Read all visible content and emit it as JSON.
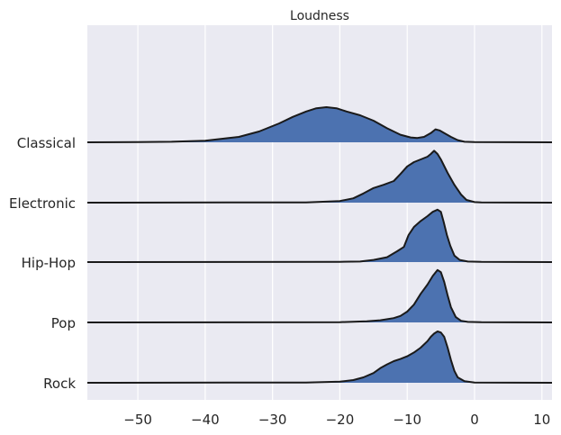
{
  "chart_data": {
    "type": "ridgeline",
    "title": "Loudness",
    "xlabel": "",
    "ylabel": "",
    "xlim": [
      -57.5,
      11.5
    ],
    "x_ticks": [
      -50,
      -40,
      -30,
      -20,
      -10,
      0,
      10
    ],
    "x_tick_labels": [
      "−50",
      "−40",
      "−30",
      "−20",
      "−10",
      "0",
      "10"
    ],
    "grid": true,
    "legend": "none",
    "colors": {
      "fill": "#4c72b0",
      "line": "#1a1a1a",
      "background": "#eaeaf2",
      "grid": "#ffffff"
    },
    "categories": [
      "Classical",
      "Electronic",
      "Hip-Hop",
      "Pop",
      "Rock"
    ],
    "series": [
      {
        "name": "Classical",
        "points": [
          [
            -57.5,
            0
          ],
          [
            -50,
            0.005
          ],
          [
            -45,
            0.01
          ],
          [
            -40,
            0.03
          ],
          [
            -35,
            0.1
          ],
          [
            -32,
            0.2
          ],
          [
            -29,
            0.35
          ],
          [
            -27,
            0.47
          ],
          [
            -25,
            0.57
          ],
          [
            -23.5,
            0.63
          ],
          [
            -22,
            0.65
          ],
          [
            -20.5,
            0.63
          ],
          [
            -19,
            0.57
          ],
          [
            -17,
            0.5
          ],
          [
            -15,
            0.4
          ],
          [
            -13,
            0.26
          ],
          [
            -11,
            0.14
          ],
          [
            -9.5,
            0.09
          ],
          [
            -8.5,
            0.08
          ],
          [
            -7.5,
            0.1
          ],
          [
            -6.5,
            0.17
          ],
          [
            -5.8,
            0.24
          ],
          [
            -5.2,
            0.22
          ],
          [
            -4.5,
            0.17
          ],
          [
            -3.5,
            0.1
          ],
          [
            -2.5,
            0.04
          ],
          [
            -1.5,
            0.01
          ],
          [
            0,
            0.003
          ],
          [
            11.5,
            0
          ]
        ]
      },
      {
        "name": "Electronic",
        "points": [
          [
            -57.5,
            0
          ],
          [
            -25,
            0.005
          ],
          [
            -20,
            0.03
          ],
          [
            -18,
            0.08
          ],
          [
            -16.5,
            0.17
          ],
          [
            -15,
            0.27
          ],
          [
            -13.5,
            0.33
          ],
          [
            -12,
            0.4
          ],
          [
            -11,
            0.53
          ],
          [
            -10,
            0.67
          ],
          [
            -9,
            0.75
          ],
          [
            -8,
            0.8
          ],
          [
            -7,
            0.85
          ],
          [
            -6.5,
            0.9
          ],
          [
            -6,
            0.96
          ],
          [
            -5.5,
            0.9
          ],
          [
            -5,
            0.8
          ],
          [
            -4,
            0.55
          ],
          [
            -3,
            0.33
          ],
          [
            -2,
            0.15
          ],
          [
            -1.2,
            0.05
          ],
          [
            0,
            0.01
          ],
          [
            1,
            0.003
          ],
          [
            11.5,
            0
          ]
        ]
      },
      {
        "name": "Hip-Hop",
        "points": [
          [
            -57.5,
            0
          ],
          [
            -20,
            0.005
          ],
          [
            -17,
            0.01
          ],
          [
            -15,
            0.04
          ],
          [
            -13,
            0.09
          ],
          [
            -11.5,
            0.2
          ],
          [
            -10.5,
            0.28
          ],
          [
            -9.8,
            0.5
          ],
          [
            -9,
            0.65
          ],
          [
            -8,
            0.76
          ],
          [
            -7,
            0.85
          ],
          [
            -6.2,
            0.93
          ],
          [
            -5.5,
            0.97
          ],
          [
            -5,
            0.93
          ],
          [
            -4.6,
            0.75
          ],
          [
            -4.1,
            0.5
          ],
          [
            -3.6,
            0.3
          ],
          [
            -3,
            0.12
          ],
          [
            -2.2,
            0.04
          ],
          [
            -1,
            0.01
          ],
          [
            1,
            0.003
          ],
          [
            11.5,
            0
          ]
        ]
      },
      {
        "name": "Pop",
        "points": [
          [
            -57.5,
            0
          ],
          [
            -20,
            0.005
          ],
          [
            -16,
            0.02
          ],
          [
            -14,
            0.04
          ],
          [
            -12,
            0.08
          ],
          [
            -11,
            0.12
          ],
          [
            -10,
            0.2
          ],
          [
            -9,
            0.33
          ],
          [
            -8,
            0.53
          ],
          [
            -7,
            0.7
          ],
          [
            -6.2,
            0.86
          ],
          [
            -5.5,
            0.97
          ],
          [
            -5,
            0.93
          ],
          [
            -4.5,
            0.75
          ],
          [
            -4,
            0.5
          ],
          [
            -3.5,
            0.28
          ],
          [
            -2.8,
            0.1
          ],
          [
            -2,
            0.03
          ],
          [
            -1,
            0.01
          ],
          [
            1,
            0.003
          ],
          [
            11.5,
            0
          ]
        ]
      },
      {
        "name": "Rock",
        "points": [
          [
            -57.5,
            0
          ],
          [
            -25,
            0.005
          ],
          [
            -20,
            0.02
          ],
          [
            -18,
            0.05
          ],
          [
            -16.5,
            0.1
          ],
          [
            -15,
            0.18
          ],
          [
            -14,
            0.27
          ],
          [
            -13,
            0.34
          ],
          [
            -12,
            0.4
          ],
          [
            -11,
            0.44
          ],
          [
            -10,
            0.49
          ],
          [
            -9,
            0.56
          ],
          [
            -8,
            0.65
          ],
          [
            -7,
            0.77
          ],
          [
            -6.5,
            0.85
          ],
          [
            -6,
            0.91
          ],
          [
            -5.5,
            0.95
          ],
          [
            -5,
            0.93
          ],
          [
            -4.5,
            0.85
          ],
          [
            -4,
            0.65
          ],
          [
            -3.5,
            0.42
          ],
          [
            -3,
            0.22
          ],
          [
            -2.5,
            0.1
          ],
          [
            -1.5,
            0.03
          ],
          [
            0,
            0.005
          ],
          [
            11.5,
            0
          ]
        ]
      }
    ]
  }
}
